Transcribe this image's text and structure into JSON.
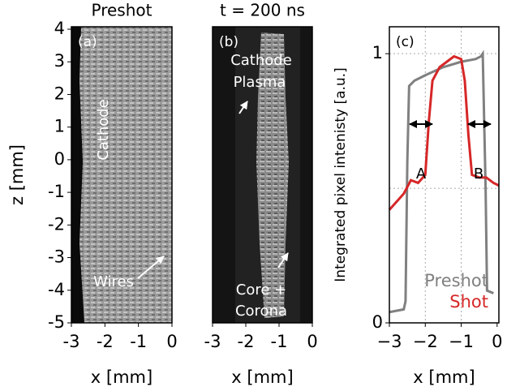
{
  "chart_data": [
    {
      "type": "image",
      "title": "Preshot",
      "panel_label": "(a)",
      "xlabel": "x [mm]",
      "ylabel": "z [mm]",
      "xlim": [
        -3,
        0
      ],
      "ylim": [
        -5,
        4
      ],
      "xticks": [
        -3,
        -2,
        -1,
        0
      ],
      "yticks": [
        4,
        3,
        2,
        1,
        0,
        -1,
        -2,
        -3,
        -4,
        -5
      ],
      "annotations": [
        "Cathode",
        "Wires"
      ]
    },
    {
      "type": "image",
      "title": "t = 200 ns",
      "panel_label": "(b)",
      "xlabel": "x [mm]",
      "xlim": [
        -3,
        0
      ],
      "ylim": [
        -5,
        4
      ],
      "xticks": [
        -3,
        -2,
        -1,
        0
      ],
      "annotations": [
        "Cathode",
        "Plasma",
        "Core +",
        "Corona"
      ]
    },
    {
      "type": "line",
      "panel_label": "(c)",
      "xlabel": "x [mm]",
      "ylabel": "Integrated pixel intenisty [a.u.]",
      "xlim": [
        -3,
        0.05
      ],
      "ylim": [
        0,
        1.1
      ],
      "xticks": [
        {
          "value": -3,
          "label": "−3"
        },
        {
          "value": -2,
          "label": "−2"
        },
        {
          "value": -1,
          "label": "−1"
        },
        {
          "value": 0,
          "label": "0"
        }
      ],
      "yticks": [
        0,
        1
      ],
      "xgrid": [
        -2,
        -1
      ],
      "ygrid": [
        0.5,
        1
      ],
      "annotations": [
        "A",
        "B"
      ],
      "series": [
        {
          "name": "Preshot",
          "color": "#808080",
          "x": [
            -3,
            -2.6,
            -2.55,
            -2.5,
            -2.45,
            -2.3,
            -2.0,
            -1.5,
            -1.0,
            -0.6,
            -0.45,
            -0.4,
            -0.32,
            -0.28,
            -0.1
          ],
          "values": [
            0.04,
            0.05,
            0.08,
            0.6,
            0.88,
            0.9,
            0.92,
            0.95,
            0.97,
            0.98,
            0.99,
            1.0,
            0.5,
            0.12,
            0.11
          ]
        },
        {
          "name": "Shot",
          "color": "#d62728",
          "x": [
            -3,
            -2.6,
            -2.4,
            -2.2,
            -2.0,
            -1.9,
            -1.8,
            -1.6,
            -1.4,
            -1.2,
            -1.0,
            -0.9,
            -0.8,
            -0.7,
            -0.5,
            -0.3,
            -0.1,
            0.05
          ],
          "values": [
            0.42,
            0.48,
            0.53,
            0.52,
            0.55,
            0.75,
            0.9,
            0.95,
            0.97,
            0.99,
            0.98,
            0.9,
            0.7,
            0.55,
            0.54,
            0.54,
            0.52,
            0.51
          ]
        }
      ]
    }
  ]
}
